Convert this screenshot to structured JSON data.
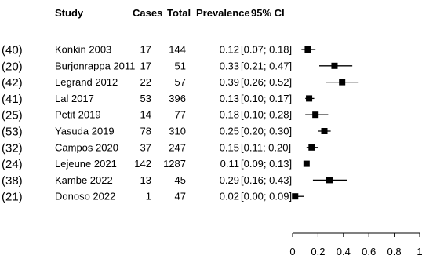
{
  "chart_data": {
    "type": "forest",
    "columns": {
      "study": "Study",
      "cases": "Cases",
      "total": "Total",
      "prevalence": "Prevalence",
      "ci": "95% CI"
    },
    "rows": [
      {
        "ref": "(40)",
        "study": "Konkin 2003",
        "cases": "17",
        "total": "144",
        "prevalence": "0.12",
        "ci": "[0.07; 0.18]",
        "est": 0.12,
        "lo": 0.07,
        "hi": 0.18
      },
      {
        "ref": "(20)",
        "study": "Burjonrappa 2011",
        "cases": "17",
        "total": "51",
        "prevalence": "0.33",
        "ci": "[0.21; 0.47]",
        "est": 0.33,
        "lo": 0.21,
        "hi": 0.47
      },
      {
        "ref": "(42)",
        "study": "Legrand 2012",
        "cases": "22",
        "total": "57",
        "prevalence": "0.39",
        "ci": "[0.26; 0.52]",
        "est": 0.39,
        "lo": 0.26,
        "hi": 0.52
      },
      {
        "ref": "(41)",
        "study": "Lal 2017",
        "cases": "53",
        "total": "396",
        "prevalence": "0.13",
        "ci": "[0.10; 0.17]",
        "est": 0.13,
        "lo": 0.1,
        "hi": 0.17
      },
      {
        "ref": "(25)",
        "study": "Petit 2019",
        "cases": "14",
        "total": "77",
        "prevalence": "0.18",
        "ci": "[0.10; 0.28]",
        "est": 0.18,
        "lo": 0.1,
        "hi": 0.28
      },
      {
        "ref": "(53)",
        "study": "Yasuda 2019",
        "cases": "78",
        "total": "310",
        "prevalence": "0.25",
        "ci": "[0.20; 0.30]",
        "est": 0.25,
        "lo": 0.2,
        "hi": 0.3
      },
      {
        "ref": "(32)",
        "study": "Campos 2020",
        "cases": "37",
        "total": "247",
        "prevalence": "0.15",
        "ci": "[0.11; 0.20]",
        "est": 0.15,
        "lo": 0.11,
        "hi": 0.2
      },
      {
        "ref": "(24)",
        "study": "Lejeune 2021",
        "cases": "142",
        "total": "1287",
        "prevalence": "0.11",
        "ci": "[0.09; 0.13]",
        "est": 0.11,
        "lo": 0.09,
        "hi": 0.13
      },
      {
        "ref": "(38)",
        "study": "Kambe 2022",
        "cases": "13",
        "total": "45",
        "prevalence": "0.29",
        "ci": "[0.16; 0.43]",
        "est": 0.29,
        "lo": 0.16,
        "hi": 0.43
      },
      {
        "ref": "(21)",
        "study": "Donoso 2022",
        "cases": "1",
        "total": "47",
        "prevalence": "0.02",
        "ci": "[0.00; 0.09]",
        "est": 0.02,
        "lo": 0.0,
        "hi": 0.09
      }
    ],
    "xaxis": {
      "ticks": [
        0,
        0.2,
        0.4,
        0.6,
        0.8,
        1
      ],
      "tick_labels": [
        "0",
        "0.2",
        "0.4",
        "0.6",
        "0.8",
        "1"
      ],
      "xlim": [
        0,
        1
      ]
    },
    "marker_color": "#000000"
  }
}
